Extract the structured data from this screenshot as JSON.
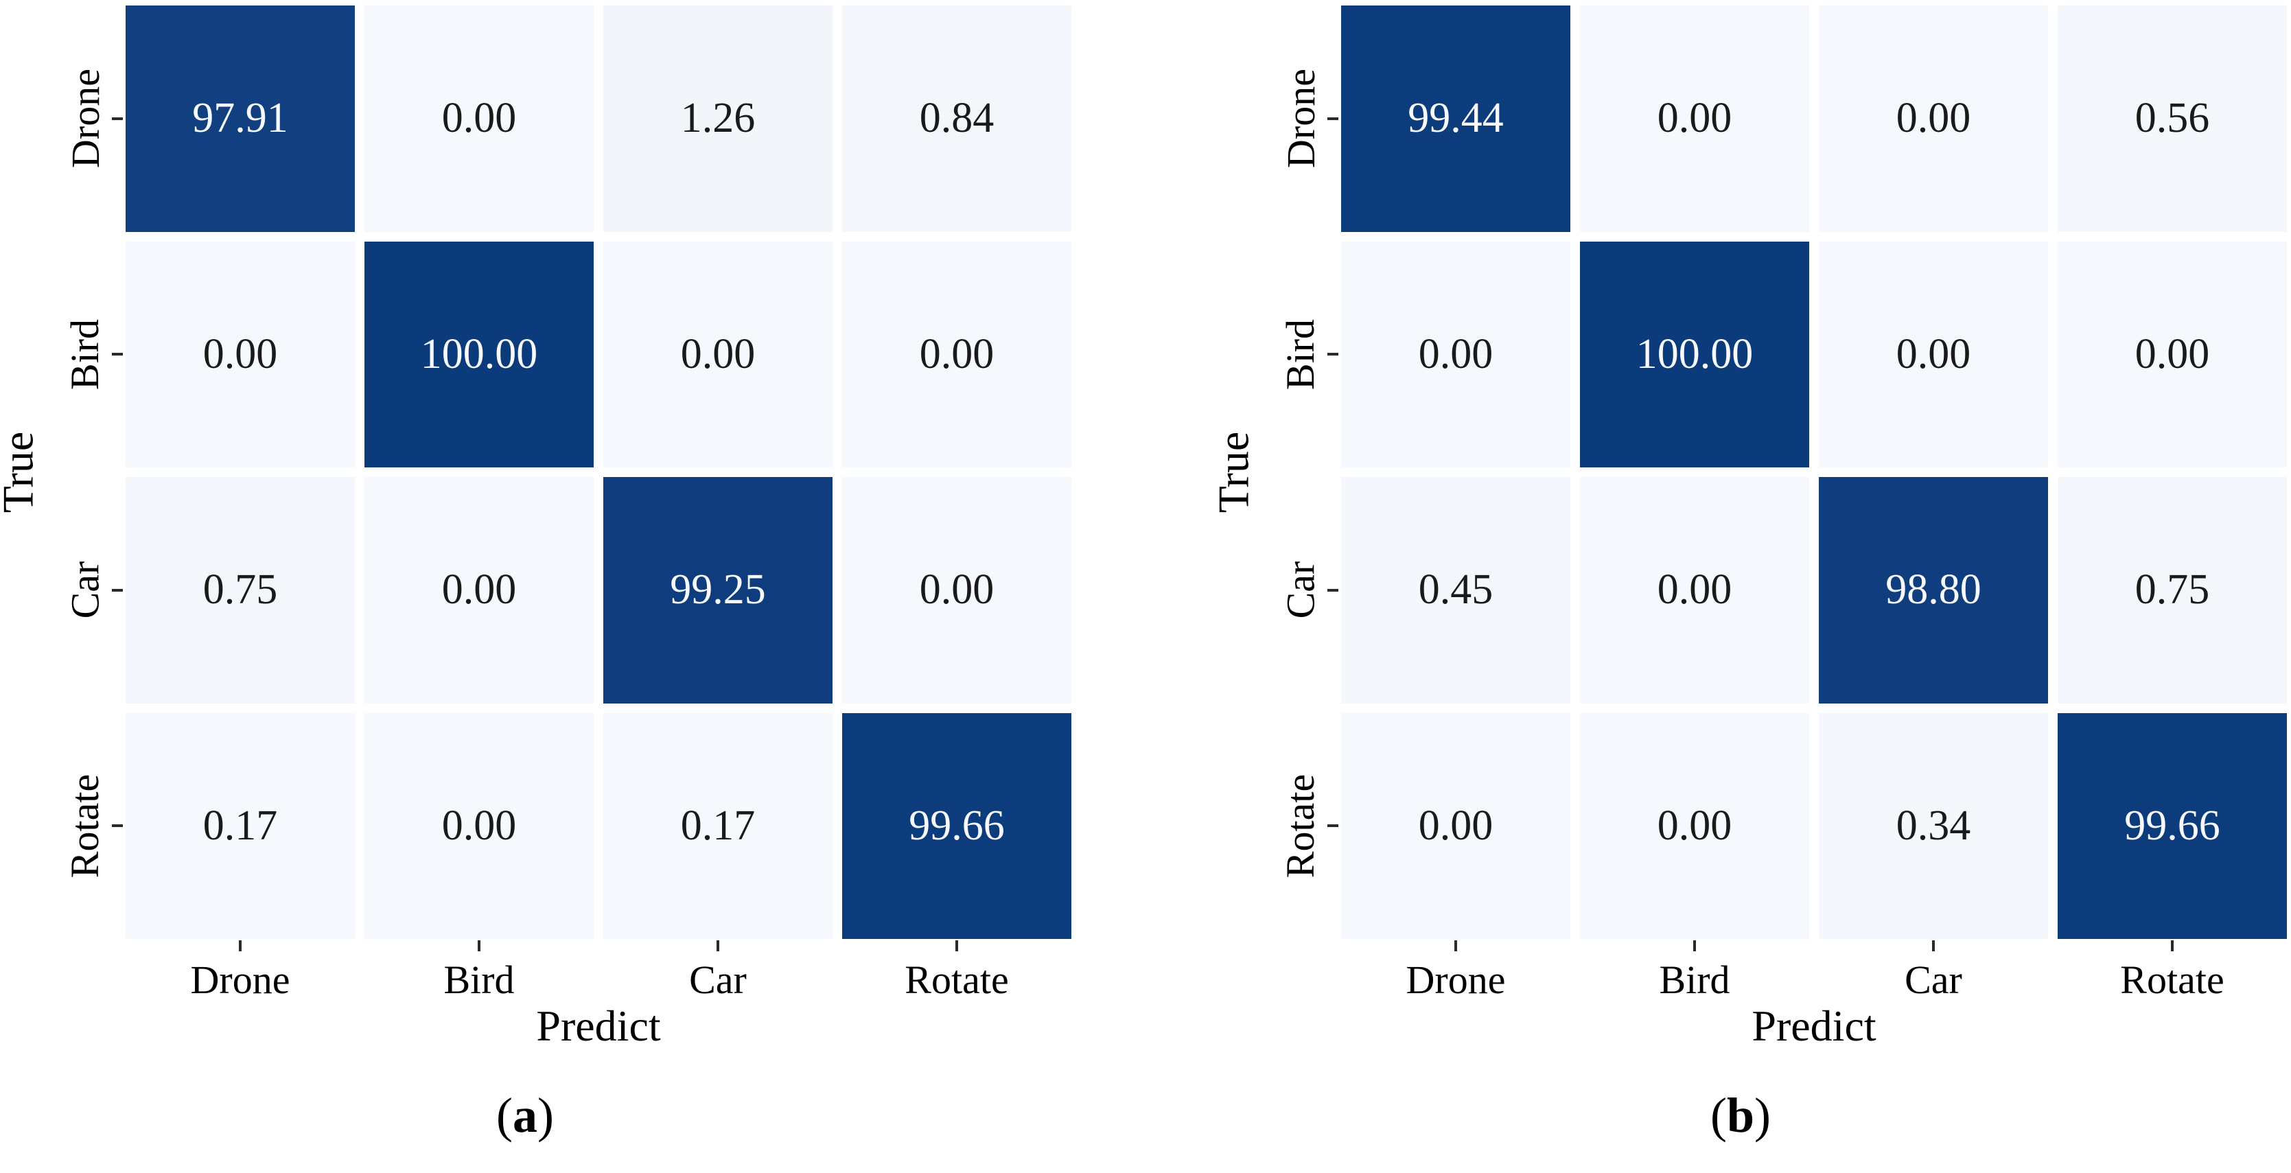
{
  "style": {
    "background": "#ffffff",
    "cmap_high": "#0c3b7c",
    "cmap_low": "#f5f8fc",
    "tick_color": "#2b2b2b",
    "text_color": "#000000",
    "value_on_dark": "#f7f9fc",
    "value_on_light": "#1a1a1a"
  },
  "chart_data": [
    {
      "type": "heatmap",
      "panel_id": "a",
      "title": "",
      "xlabel": "Predict",
      "ylabel": "True",
      "x_categories": [
        "Drone",
        "Bird",
        "Car",
        "Rotate"
      ],
      "y_categories": [
        "Drone",
        "Bird",
        "Car",
        "Rotate"
      ],
      "values": [
        [
          97.91,
          0.0,
          1.26,
          0.84
        ],
        [
          0.0,
          100.0,
          0.0,
          0.0
        ],
        [
          0.75,
          0.0,
          99.25,
          0.0
        ],
        [
          0.17,
          0.0,
          0.17,
          99.66
        ]
      ],
      "value_labels": [
        [
          "97.91",
          "0.00",
          "1.26",
          "0.84"
        ],
        [
          "0.00",
          "100.00",
          "0.00",
          "0.00"
        ],
        [
          "0.75",
          "0.00",
          "99.25",
          "0.00"
        ],
        [
          "0.17",
          "0.00",
          "0.17",
          "99.66"
        ]
      ],
      "value_range": [
        0,
        100
      ],
      "grid_on": false,
      "legend": "none",
      "caption_open": "(",
      "caption_letter": "a",
      "caption_close": ")"
    },
    {
      "type": "heatmap",
      "panel_id": "b",
      "title": "",
      "xlabel": "Predict",
      "ylabel": "True",
      "x_categories": [
        "Drone",
        "Bird",
        "Car",
        "Rotate"
      ],
      "y_categories": [
        "Drone",
        "Bird",
        "Car",
        "Rotate"
      ],
      "values": [
        [
          99.44,
          0.0,
          0.0,
          0.56
        ],
        [
          0.0,
          100.0,
          0.0,
          0.0
        ],
        [
          0.45,
          0.0,
          98.8,
          0.75
        ],
        [
          0.0,
          0.0,
          0.34,
          99.66
        ]
      ],
      "value_labels": [
        [
          "99.44",
          "0.00",
          "0.00",
          "0.56"
        ],
        [
          "0.00",
          "100.00",
          "0.00",
          "0.00"
        ],
        [
          "0.45",
          "0.00",
          "98.80",
          "0.75"
        ],
        [
          "0.00",
          "0.00",
          "0.34",
          "99.66"
        ]
      ],
      "value_range": [
        0,
        100
      ],
      "grid_on": false,
      "legend": "none",
      "caption_open": "(",
      "caption_letter": "b",
      "caption_close": ")"
    }
  ]
}
